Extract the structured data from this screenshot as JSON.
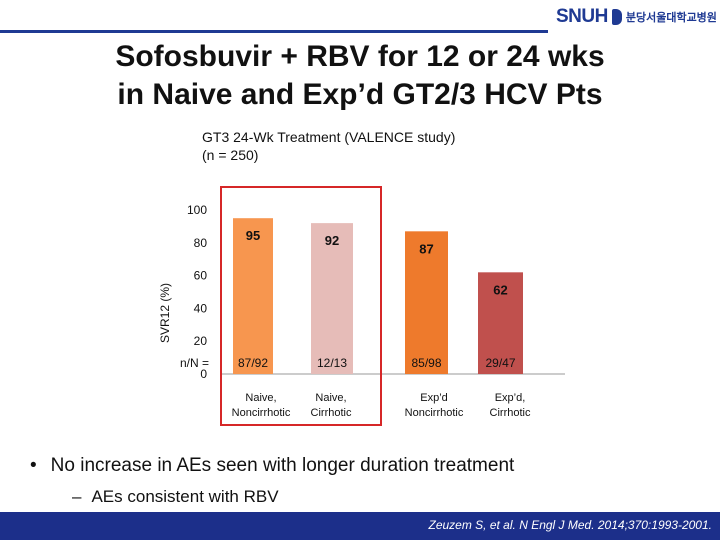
{
  "logo": {
    "text": "SNUH",
    "subtitle": "분당서울대학교병원"
  },
  "title": {
    "line1": "Sofosbuvir + RBV for 12 or 24 wks",
    "line2": "in Naive and Exp’d GT2/3 HCV Pts"
  },
  "subtitle": {
    "line1": "GT3 24-Wk Treatment (VALENCE study)",
    "line2": "(n = 250)"
  },
  "bullet": {
    "marker": "•",
    "text": "No increase in AEs seen with longer duration treatment"
  },
  "sub_bullet": {
    "marker": "–",
    "text": "AEs consistent with RBV"
  },
  "citation": "Zeuzem S, et al. N Engl J Med. 2014;370:1993-2001.",
  "colors": {
    "accent_blue": "#1f3a93",
    "highlight_red": "#d62728",
    "bar_naive_noncirrhotic": "#f7964f",
    "bar_naive_cirrhotic": "#e6bcb8",
    "bar_exp_noncirrhotic": "#ee7a2c",
    "bar_exp_cirrhotic": "#c0504d"
  },
  "chart_data": {
    "type": "bar",
    "ylabel": "SVR12 (%)",
    "ylim": [
      0,
      100
    ],
    "yticks": [
      "0",
      "20",
      "40",
      "60",
      "80",
      "100"
    ],
    "nN_label": "n/N =",
    "categories": [
      {
        "line1": "Naive,",
        "line2": "Noncirrhotic"
      },
      {
        "line1": "Naive,",
        "line2": "Cirrhotic"
      },
      {
        "line1": "Exp’d",
        "line2": "Noncirrhotic"
      },
      {
        "line1": "Exp’d,",
        "line2": "Cirrhotic"
      }
    ],
    "values": [
      95,
      92,
      87,
      62
    ],
    "nN": [
      "87/92",
      "12/13",
      "85/98",
      "29/47"
    ],
    "highlighted_categories": [
      0,
      1
    ]
  }
}
